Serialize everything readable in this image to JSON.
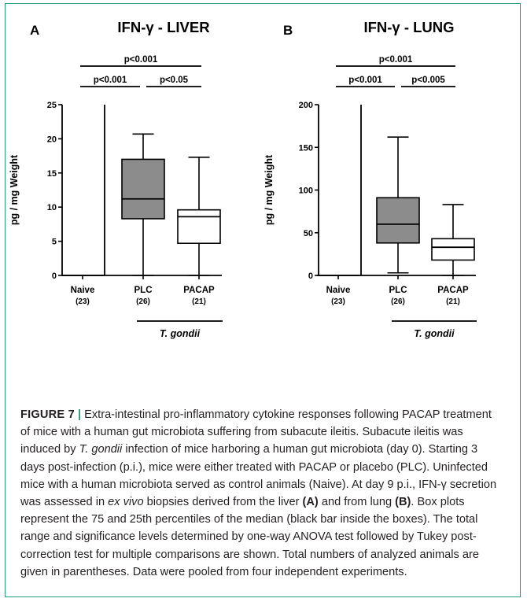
{
  "figure": {
    "label": "FIGURE 7",
    "separator": "|",
    "caption_segments": [
      {
        "t": "Extra-intestinal pro-inflammatory cytokine responses following PACAP treatment of mice with a human gut microbiota suffering from subacute ileitis. Subacute ileitis was induced by ",
        "s": "n"
      },
      {
        "t": "T. gondii",
        "s": "i"
      },
      {
        "t": " infection of mice harboring a human gut microbiota (day 0). Starting 3 days post-infection (p.i.), mice were either treated with PACAP or placebo (PLC). Uninfected mice with a human microbiota served as control animals (Naive). At day 9 p.i., IFN-γ secretion was assessed in ",
        "s": "n"
      },
      {
        "t": "ex vivo",
        "s": "i"
      },
      {
        "t": " biopsies derived from the liver ",
        "s": "n"
      },
      {
        "t": "(A)",
        "s": "b"
      },
      {
        "t": " and from lung ",
        "s": "n"
      },
      {
        "t": "(B)",
        "s": "b"
      },
      {
        "t": ". Box plots represent the 75 and 25th percentiles of the median (black bar inside the boxes). The total range and significance levels determined by one-way ANOVA test followed by Tukey post-correction test for multiple comparisons are shown. Total numbers of analyzed animals are given in parentheses. Data were pooled from four independent experiments.",
        "s": "n"
      }
    ]
  },
  "chart_data": [
    {
      "panel": "A",
      "type": "box",
      "title": "IFN-γ - LIVER",
      "ylabel": "pg / mg Weight",
      "ylim": [
        0,
        25
      ],
      "yticks": [
        0,
        5,
        10,
        15,
        20,
        25
      ],
      "groups": [
        {
          "label": "Naive",
          "n": "(23)",
          "min": 0,
          "q1": 0,
          "median": 0,
          "q3": 0,
          "max": 0,
          "fill": "#ffffff"
        },
        {
          "label": "PLC",
          "n": "(26)",
          "min": 0,
          "q1": 8.3,
          "median": 11.2,
          "q3": 17.0,
          "max": 20.7,
          "fill": "#8c8c8c"
        },
        {
          "label": "PACAP",
          "n": "(21)",
          "min": 0,
          "q1": 4.7,
          "median": 8.6,
          "q3": 9.6,
          "max": 17.3,
          "fill": "#ffffff"
        }
      ],
      "infection_label": "T. gondii",
      "significance": [
        {
          "from": 0,
          "to": 2,
          "label": "p<0.001",
          "level": 2
        },
        {
          "from": 0,
          "to": 1,
          "label": "p<0.001",
          "level": 1
        },
        {
          "from": 1,
          "to": 2,
          "label": "p<0.05",
          "level": 1
        }
      ]
    },
    {
      "panel": "B",
      "type": "box",
      "title": "IFN-γ - LUNG",
      "ylabel": "pg / mg Weight",
      "ylim": [
        0,
        200
      ],
      "yticks": [
        0,
        50,
        100,
        150,
        200
      ],
      "groups": [
        {
          "label": "Naive",
          "n": "(23)",
          "min": 0,
          "q1": 0,
          "median": 0,
          "q3": 0,
          "max": 0,
          "fill": "#ffffff"
        },
        {
          "label": "PLC",
          "n": "(26)",
          "min": 3,
          "q1": 38,
          "median": 60,
          "q3": 91,
          "max": 162,
          "fill": "#8c8c8c"
        },
        {
          "label": "PACAP",
          "n": "(21)",
          "min": 0,
          "q1": 18,
          "median": 33,
          "q3": 43,
          "max": 83,
          "fill": "#ffffff"
        }
      ],
      "infection_label": "T. gondii",
      "significance": [
        {
          "from": 0,
          "to": 2,
          "label": "p<0.001",
          "level": 2
        },
        {
          "from": 0,
          "to": 1,
          "label": "p<0.001",
          "level": 1
        },
        {
          "from": 1,
          "to": 2,
          "label": "p<0.005",
          "level": 1
        }
      ]
    }
  ]
}
